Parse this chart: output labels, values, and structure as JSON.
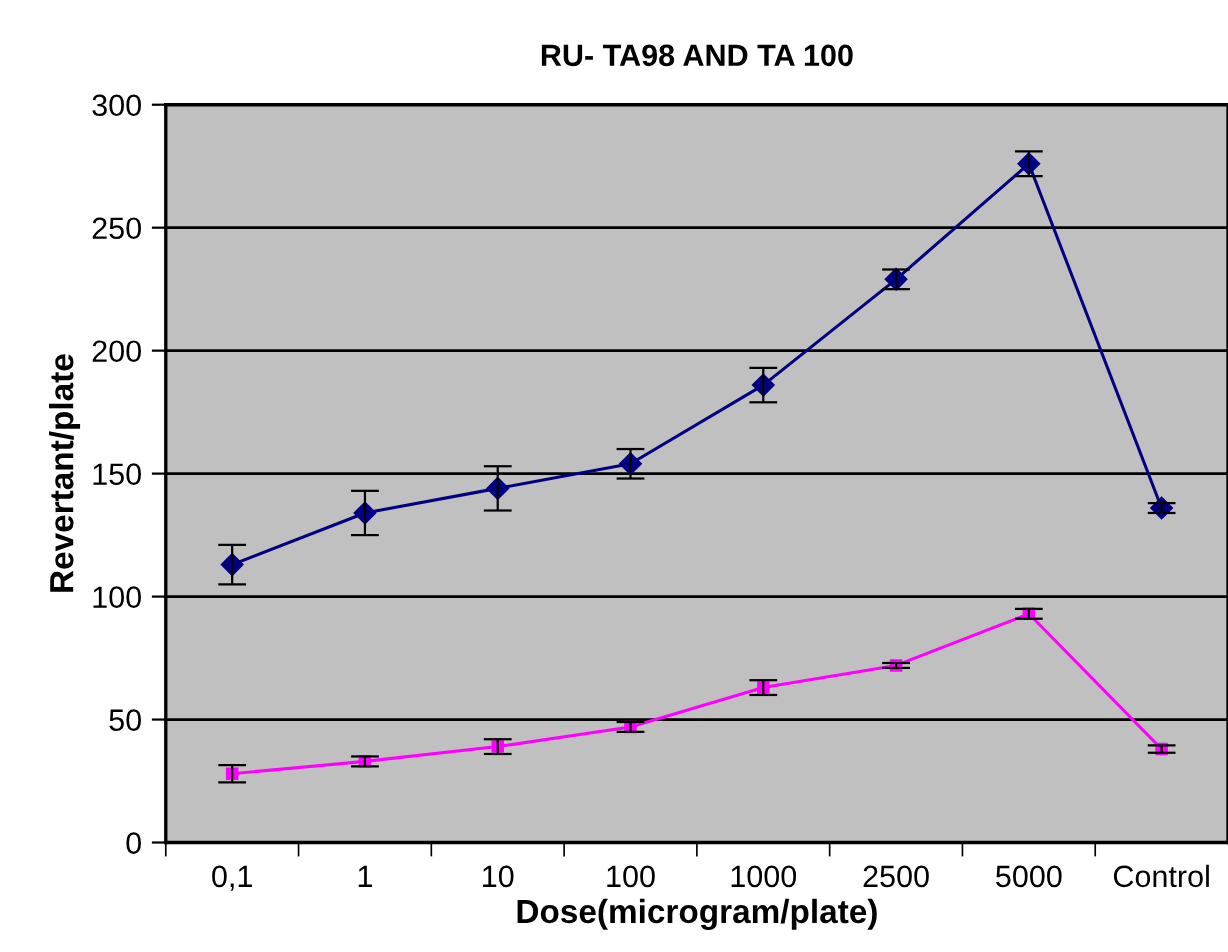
{
  "chart_data": {
    "type": "line",
    "title": "RU- TA98 AND TA 100",
    "xlabel": "Dose(microgram/plate)",
    "ylabel": "Revertant/plate",
    "categories": [
      "0,1",
      "1",
      "10",
      "100",
      "1000",
      "2500",
      "5000",
      "Control"
    ],
    "series": [
      {
        "color": "#000080",
        "marker": "diamond",
        "values": [
          113,
          134,
          144,
          154,
          186,
          229,
          276,
          136
        ],
        "errors": [
          8,
          9,
          9,
          6,
          7,
          4,
          5,
          2
        ]
      },
      {
        "color": "#ff00ff",
        "marker": "square",
        "values": [
          28,
          33,
          39,
          47,
          63,
          72,
          93,
          38
        ],
        "errors": [
          3.5,
          2,
          3,
          2,
          3,
          1,
          2,
          1.5
        ]
      }
    ],
    "ylim": [
      0,
      300
    ],
    "yticks": [
      0,
      50,
      100,
      150,
      200,
      250,
      300
    ],
    "grid": "y",
    "legend": false,
    "line_style": "solid"
  }
}
